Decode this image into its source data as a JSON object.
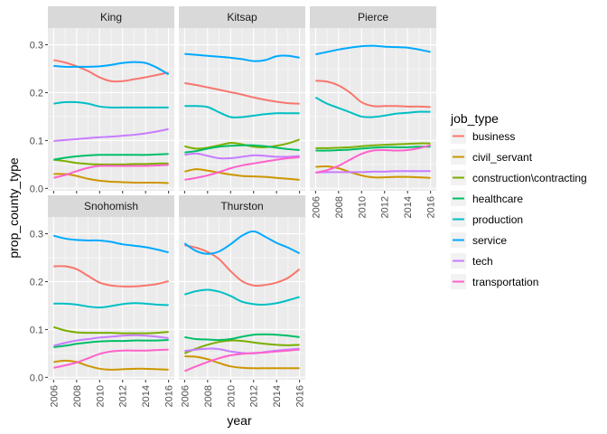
{
  "chart_data": {
    "type": "line",
    "xlabel": "year",
    "ylabel": "prop_county_type",
    "xlim": [
      2005.5,
      2016.5
    ],
    "ylim": [
      -0.005,
      0.335
    ],
    "x_ticks": [
      2006,
      2008,
      2010,
      2012,
      2014,
      2016
    ],
    "x_tick_labels": [
      "2006",
      "2008",
      "2010",
      "2012",
      "2014",
      "2016"
    ],
    "y_ticks": [
      0.0,
      0.1,
      0.2,
      0.3
    ],
    "y_tick_labels": [
      "0.0",
      "0.1",
      "0.2",
      "0.3"
    ],
    "x": [
      2006,
      2007,
      2008,
      2009,
      2010,
      2011,
      2012,
      2013,
      2014,
      2015,
      2016
    ],
    "legend": {
      "title": "job_type",
      "entries": [
        {
          "name": "business",
          "color": "#F8766D"
        },
        {
          "name": "civil_servant",
          "color": "#CD9600"
        },
        {
          "name": "construction\\contracting",
          "color": "#7CAE00"
        },
        {
          "name": "healthcare",
          "color": "#00BE67"
        },
        {
          "name": "production",
          "color": "#00BFC4"
        },
        {
          "name": "service",
          "color": "#00A9FF"
        },
        {
          "name": "tech",
          "color": "#C77CFF"
        },
        {
          "name": "transportation",
          "color": "#FF61CC"
        }
      ]
    },
    "panels": [
      {
        "name": "King",
        "series": {
          "business": [
            0.268,
            0.263,
            0.255,
            0.245,
            0.232,
            0.224,
            0.224,
            0.228,
            0.232,
            0.237,
            0.242
          ],
          "civil_servant": [
            0.03,
            0.03,
            0.026,
            0.02,
            0.016,
            0.014,
            0.013,
            0.012,
            0.012,
            0.012,
            0.011
          ],
          "construction\\contracting": [
            0.06,
            0.057,
            0.053,
            0.051,
            0.05,
            0.05,
            0.05,
            0.051,
            0.051,
            0.052,
            0.052
          ],
          "healthcare": [
            0.06,
            0.064,
            0.067,
            0.069,
            0.07,
            0.07,
            0.07,
            0.07,
            0.07,
            0.071,
            0.072
          ],
          "production": [
            0.177,
            0.18,
            0.18,
            0.177,
            0.171,
            0.169,
            0.169,
            0.169,
            0.169,
            0.169,
            0.169
          ],
          "service": [
            0.256,
            0.254,
            0.254,
            0.254,
            0.255,
            0.258,
            0.262,
            0.264,
            0.262,
            0.252,
            0.238
          ],
          "tech": [
            0.099,
            0.101,
            0.103,
            0.105,
            0.107,
            0.108,
            0.11,
            0.112,
            0.115,
            0.119,
            0.124
          ],
          "transportation": [
            0.022,
            0.028,
            0.036,
            0.043,
            0.047,
            0.047,
            0.047,
            0.047,
            0.047,
            0.048,
            0.049
          ]
        }
      },
      {
        "name": "Kitsap",
        "series": {
          "business": [
            0.22,
            0.216,
            0.211,
            0.206,
            0.201,
            0.196,
            0.19,
            0.185,
            0.181,
            0.178,
            0.177
          ],
          "civil_servant": [
            0.035,
            0.04,
            0.037,
            0.033,
            0.029,
            0.026,
            0.025,
            0.024,
            0.022,
            0.02,
            0.018
          ],
          "construction\\contracting": [
            0.088,
            0.083,
            0.085,
            0.09,
            0.095,
            0.092,
            0.087,
            0.086,
            0.089,
            0.094,
            0.102
          ],
          "healthcare": [
            0.075,
            0.078,
            0.083,
            0.087,
            0.089,
            0.09,
            0.09,
            0.088,
            0.085,
            0.082,
            0.08
          ],
          "production": [
            0.172,
            0.172,
            0.17,
            0.159,
            0.149,
            0.149,
            0.152,
            0.155,
            0.157,
            0.157,
            0.157
          ],
          "service": [
            0.281,
            0.279,
            0.277,
            0.275,
            0.273,
            0.27,
            0.266,
            0.268,
            0.276,
            0.277,
            0.273
          ],
          "tech": [
            0.07,
            0.073,
            0.068,
            0.063,
            0.063,
            0.066,
            0.069,
            0.068,
            0.066,
            0.066,
            0.068
          ],
          "transportation": [
            0.018,
            0.022,
            0.027,
            0.034,
            0.042,
            0.048,
            0.052,
            0.056,
            0.06,
            0.063,
            0.065
          ]
        }
      },
      {
        "name": "Pierce",
        "series": {
          "business": [
            0.225,
            0.223,
            0.215,
            0.2,
            0.18,
            0.172,
            0.172,
            0.172,
            0.171,
            0.171,
            0.17
          ],
          "civil_servant": [
            0.045,
            0.046,
            0.042,
            0.034,
            0.027,
            0.023,
            0.023,
            0.024,
            0.024,
            0.023,
            0.022
          ],
          "construction\\contracting": [
            0.084,
            0.084,
            0.085,
            0.086,
            0.088,
            0.09,
            0.091,
            0.092,
            0.093,
            0.094,
            0.094
          ],
          "healthcare": [
            0.079,
            0.079,
            0.08,
            0.081,
            0.083,
            0.085,
            0.086,
            0.086,
            0.086,
            0.087,
            0.087
          ],
          "production": [
            0.19,
            0.177,
            0.168,
            0.159,
            0.15,
            0.149,
            0.152,
            0.156,
            0.158,
            0.16,
            0.16
          ],
          "service": [
            0.28,
            0.285,
            0.29,
            0.294,
            0.297,
            0.298,
            0.296,
            0.295,
            0.294,
            0.29,
            0.285
          ],
          "tech": [
            0.033,
            0.034,
            0.034,
            0.034,
            0.034,
            0.035,
            0.035,
            0.036,
            0.036,
            0.036,
            0.036
          ],
          "transportation": [
            0.033,
            0.038,
            0.047,
            0.06,
            0.072,
            0.079,
            0.08,
            0.079,
            0.08,
            0.084,
            0.09
          ]
        }
      },
      {
        "name": "Snohomish",
        "series": {
          "business": [
            0.232,
            0.232,
            0.226,
            0.212,
            0.198,
            0.192,
            0.19,
            0.19,
            0.192,
            0.195,
            0.201
          ],
          "civil_servant": [
            0.032,
            0.035,
            0.032,
            0.024,
            0.018,
            0.016,
            0.017,
            0.018,
            0.018,
            0.017,
            0.016
          ],
          "construction\\contracting": [
            0.105,
            0.098,
            0.094,
            0.093,
            0.093,
            0.093,
            0.092,
            0.092,
            0.092,
            0.093,
            0.095
          ],
          "healthcare": [
            0.063,
            0.066,
            0.07,
            0.073,
            0.075,
            0.076,
            0.076,
            0.077,
            0.077,
            0.077,
            0.078
          ],
          "production": [
            0.154,
            0.154,
            0.152,
            0.148,
            0.146,
            0.149,
            0.153,
            0.155,
            0.154,
            0.152,
            0.151
          ],
          "service": [
            0.296,
            0.29,
            0.287,
            0.286,
            0.286,
            0.283,
            0.278,
            0.275,
            0.272,
            0.267,
            0.261
          ],
          "tech": [
            0.066,
            0.072,
            0.077,
            0.08,
            0.083,
            0.085,
            0.087,
            0.088,
            0.087,
            0.085,
            0.082
          ],
          "transportation": [
            0.02,
            0.025,
            0.031,
            0.04,
            0.049,
            0.054,
            0.056,
            0.056,
            0.056,
            0.057,
            0.058
          ]
        }
      },
      {
        "name": "Thurston",
        "series": {
          "business": [
            0.276,
            0.271,
            0.262,
            0.247,
            0.222,
            0.201,
            0.192,
            0.193,
            0.198,
            0.208,
            0.226
          ],
          "civil_servant": [
            0.044,
            0.043,
            0.038,
            0.03,
            0.023,
            0.02,
            0.019,
            0.019,
            0.019,
            0.019,
            0.019
          ],
          "construction\\contracting": [
            0.05,
            0.06,
            0.068,
            0.074,
            0.077,
            0.076,
            0.073,
            0.07,
            0.068,
            0.067,
            0.068
          ],
          "healthcare": [
            0.084,
            0.08,
            0.079,
            0.078,
            0.08,
            0.085,
            0.089,
            0.09,
            0.089,
            0.087,
            0.084
          ],
          "production": [
            0.173,
            0.18,
            0.183,
            0.179,
            0.17,
            0.158,
            0.153,
            0.152,
            0.155,
            0.161,
            0.168
          ],
          "service": [
            0.28,
            0.264,
            0.258,
            0.263,
            0.278,
            0.296,
            0.305,
            0.294,
            0.281,
            0.271,
            0.259
          ],
          "tech": [
            0.055,
            0.058,
            0.06,
            0.059,
            0.054,
            0.051,
            0.05,
            0.053,
            0.056,
            0.058,
            0.06
          ],
          "transportation": [
            0.013,
            0.023,
            0.032,
            0.04,
            0.046,
            0.049,
            0.051,
            0.052,
            0.054,
            0.056,
            0.058
          ]
        }
      }
    ]
  }
}
